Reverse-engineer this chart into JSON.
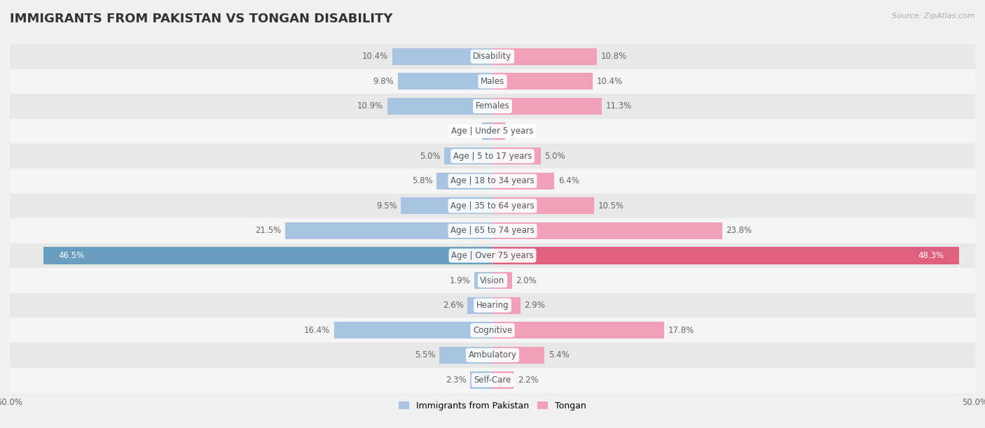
{
  "title": "IMMIGRANTS FROM PAKISTAN VS TONGAN DISABILITY",
  "source": "Source: ZipAtlas.com",
  "categories": [
    "Disability",
    "Males",
    "Females",
    "Age | Under 5 years",
    "Age | 5 to 17 years",
    "Age | 18 to 34 years",
    "Age | 35 to 64 years",
    "Age | 65 to 74 years",
    "Age | Over 75 years",
    "Vision",
    "Hearing",
    "Cognitive",
    "Ambulatory",
    "Self-Care"
  ],
  "pakistan_values": [
    10.4,
    9.8,
    10.9,
    1.1,
    5.0,
    5.8,
    9.5,
    21.5,
    46.5,
    1.9,
    2.6,
    16.4,
    5.5,
    2.3
  ],
  "tongan_values": [
    10.8,
    10.4,
    11.3,
    1.3,
    5.0,
    6.4,
    10.5,
    23.8,
    48.3,
    2.0,
    2.9,
    17.8,
    5.4,
    2.2
  ],
  "pakistan_color": "#a8c4e0",
  "tongan_color": "#f0a0b8",
  "over75_pakistan_color": "#6a9ec0",
  "over75_tongan_color": "#e06080",
  "bg_color": "#f0f0f0",
  "row_even_color": "#e8e8e8",
  "row_odd_color": "#f5f5f5",
  "max_value": 50.0,
  "bar_height": 0.68,
  "label_fontsize": 8.5,
  "tick_fontsize": 8.5,
  "category_fontsize": 8.5,
  "title_fontsize": 13,
  "legend_label_pakistan": "Immigrants from Pakistan",
  "legend_label_tongan": "Tongan"
}
